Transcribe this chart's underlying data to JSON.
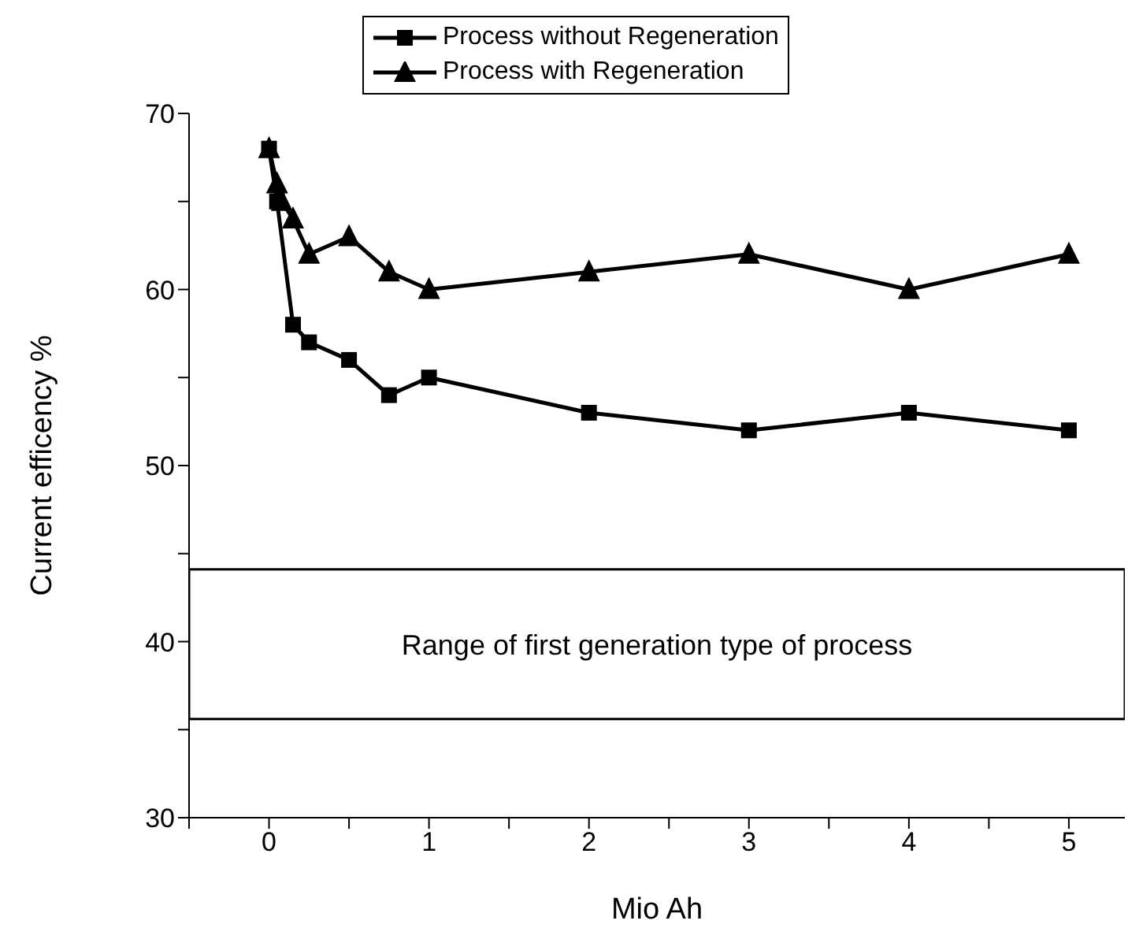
{
  "chart_data": {
    "type": "line",
    "xlabel": "Mio Ah",
    "ylabel": "Current efficency %",
    "series": [
      {
        "name": "Process without Regeneration",
        "color": "#000000",
        "marker": "square",
        "x": [
          0,
          0.05,
          0.15,
          0.25,
          0.5,
          0.75,
          1,
          2,
          3,
          4,
          5
        ],
        "values": [
          68,
          65,
          58,
          57,
          56,
          54,
          55,
          53,
          52,
          53,
          52
        ]
      },
      {
        "name": "Process with Regeneration",
        "color": "#000000",
        "marker": "triangle",
        "x": [
          0,
          0.05,
          0.08,
          0.15,
          0.25,
          0.5,
          0.75,
          1,
          2,
          3,
          4,
          5
        ],
        "values": [
          68,
          66,
          65,
          64,
          62,
          63,
          61,
          60,
          61,
          62,
          60,
          62
        ]
      }
    ],
    "xlim": [
      -0.5,
      5.35
    ],
    "xticks": [
      {
        "value": -0.5,
        "label": null
      },
      0,
      {
        "value": 0.5,
        "label": null
      },
      1,
      {
        "value": 1.5,
        "label": null
      },
      2,
      {
        "value": 2.5,
        "label": null
      },
      3,
      {
        "value": 3.5,
        "label": null
      },
      4,
      {
        "value": 4.5,
        "label": null
      },
      5
    ],
    "ylim": [
      30,
      70
    ],
    "yticks": [
      30,
      {
        "value": 35,
        "label": null
      },
      40,
      {
        "value": 45,
        "label": null
      },
      50,
      {
        "value": 55,
        "label": null
      },
      60,
      {
        "value": 65,
        "label": null
      },
      70
    ],
    "bands": [
      {
        "axis": "y",
        "from": 35.6,
        "to": 44.1,
        "label": "Range of first generation type of process",
        "color": "#ffffff"
      }
    ],
    "legend": "top",
    "grid": false,
    "line_style": "solid"
  }
}
